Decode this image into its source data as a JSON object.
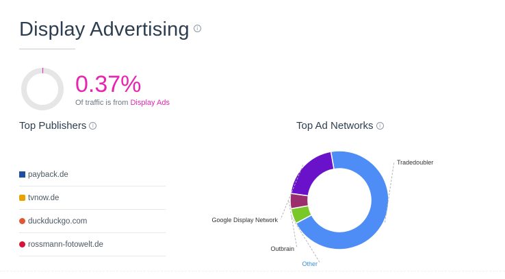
{
  "header": {
    "title": "Display Advertising",
    "info_icon": "info-icon"
  },
  "summary": {
    "percent": "0.37%",
    "percent_value": 0.37,
    "subtitle_prefix": "Of traffic is from",
    "subtitle_link": "Display Ads",
    "accent_color": "#e724b0",
    "track_color": "#e6e6e6"
  },
  "publishers": {
    "title": "Top Publishers",
    "items": [
      {
        "name": "payback.de",
        "icon": "payback-favicon",
        "color": "#1f4fa0"
      },
      {
        "name": "tvnow.de",
        "icon": "tvnow-favicon",
        "color": "#e7a400"
      },
      {
        "name": "duckduckgo.com",
        "icon": "duckduckgo-favicon",
        "color": "#de5833"
      },
      {
        "name": "rossmann-fotowelt.de",
        "icon": "rossmann-favicon",
        "color": "#d7133a"
      }
    ]
  },
  "ad_networks": {
    "title": "Top Ad Networks"
  },
  "chart_data": {
    "type": "pie",
    "title": "Top Ad Networks",
    "donut": true,
    "labels": [
      "Tradedoubler",
      "Other",
      "Outbrain",
      "Google Display Network"
    ],
    "values": [
      70,
      5,
      5,
      20
    ],
    "colors": [
      "#4e8df5",
      "#7ac72a",
      "#9b2f6e",
      "#6a12c9"
    ],
    "label_colors": [
      "#333333",
      "#3a8fd4",
      "#333333",
      "#333333"
    ]
  }
}
